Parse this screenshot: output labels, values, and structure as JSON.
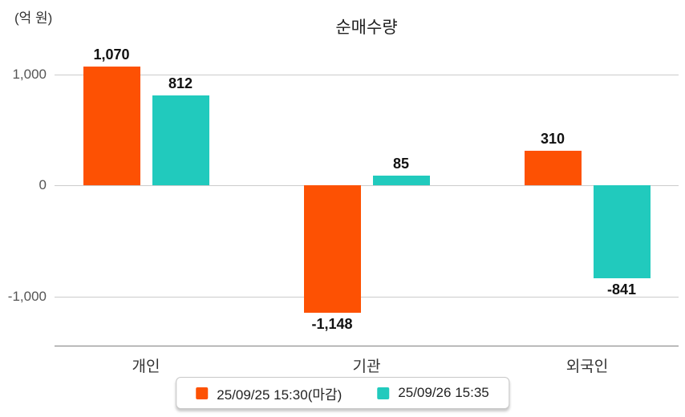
{
  "chart_data": {
    "type": "bar",
    "title": "순매수량",
    "unit_label": "(억 원)",
    "categories": [
      "개인",
      "기관",
      "외국인"
    ],
    "series": [
      {
        "name": "25/09/25 15:30(마감)",
        "color": "#fd5103",
        "values": [
          1070,
          -1148,
          310
        ],
        "labels": [
          "1,070",
          "-1,148",
          "310"
        ]
      },
      {
        "name": "25/09/26 15:35",
        "color": "#21cabd",
        "values": [
          812,
          85,
          -841
        ],
        "labels": [
          "812",
          "85",
          "-841"
        ]
      }
    ],
    "y_ticks": [
      {
        "value": 1000,
        "label": "1,000"
      },
      {
        "value": 0,
        "label": "0"
      },
      {
        "value": -1000,
        "label": "-1,000"
      }
    ],
    "ylim": [
      -1450,
      1240
    ],
    "grid": true,
    "legend_position": "bottom"
  }
}
